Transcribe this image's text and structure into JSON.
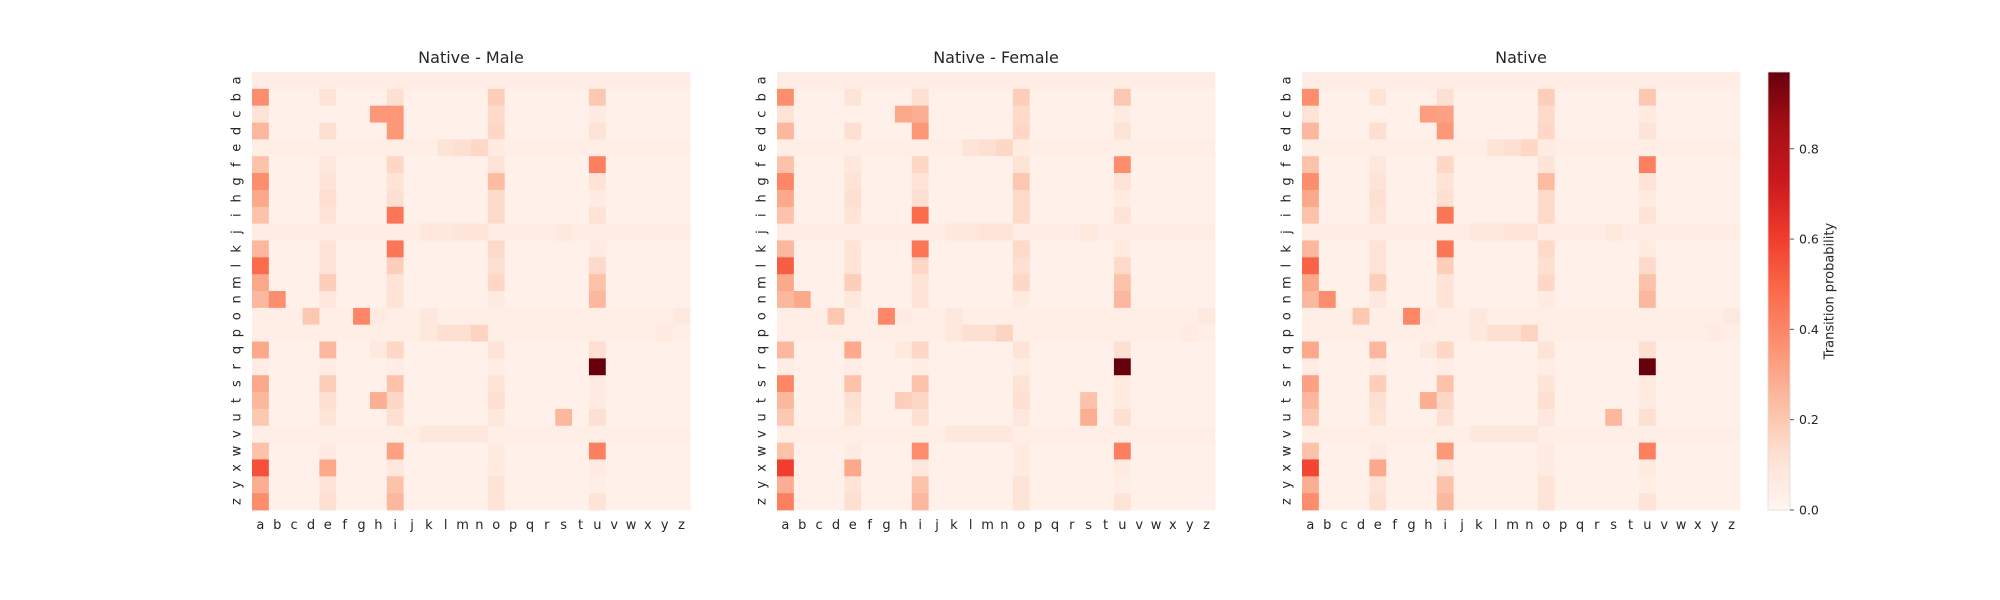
{
  "chart_data": [
    {
      "type": "heatmap",
      "title": "Native - Male",
      "x_categories": [
        "a",
        "b",
        "c",
        "d",
        "e",
        "f",
        "g",
        "h",
        "i",
        "j",
        "k",
        "l",
        "m",
        "n",
        "o",
        "p",
        "q",
        "r",
        "s",
        "t",
        "u",
        "v",
        "w",
        "x",
        "y",
        "z"
      ],
      "y_categories": [
        "a",
        "b",
        "c",
        "d",
        "e",
        "f",
        "g",
        "h",
        "i",
        "j",
        "k",
        "l",
        "m",
        "n",
        "o",
        "p",
        "q",
        "r",
        "s",
        "t",
        "u",
        "v",
        "w",
        "x",
        "y",
        "z"
      ],
      "xlabel": "",
      "ylabel": "",
      "profile": "male"
    },
    {
      "type": "heatmap",
      "title": "Native - Female",
      "x_categories": [
        "a",
        "b",
        "c",
        "d",
        "e",
        "f",
        "g",
        "h",
        "i",
        "j",
        "k",
        "l",
        "m",
        "n",
        "o",
        "p",
        "q",
        "r",
        "s",
        "t",
        "u",
        "v",
        "w",
        "x",
        "y",
        "z"
      ],
      "y_categories": [
        "a",
        "b",
        "c",
        "d",
        "e",
        "f",
        "g",
        "h",
        "i",
        "j",
        "k",
        "l",
        "m",
        "n",
        "o",
        "p",
        "q",
        "r",
        "s",
        "t",
        "u",
        "v",
        "w",
        "x",
        "y",
        "z"
      ],
      "xlabel": "",
      "ylabel": "",
      "profile": "female"
    },
    {
      "type": "heatmap",
      "title": "Native",
      "x_categories": [
        "a",
        "b",
        "c",
        "d",
        "e",
        "f",
        "g",
        "h",
        "i",
        "j",
        "k",
        "l",
        "m",
        "n",
        "o",
        "p",
        "q",
        "r",
        "s",
        "t",
        "u",
        "v",
        "w",
        "x",
        "y",
        "z"
      ],
      "y_categories": [
        "a",
        "b",
        "c",
        "d",
        "e",
        "f",
        "g",
        "h",
        "i",
        "j",
        "k",
        "l",
        "m",
        "n",
        "o",
        "p",
        "q",
        "r",
        "s",
        "t",
        "u",
        "v",
        "w",
        "x",
        "y",
        "z"
      ],
      "xlabel": "",
      "ylabel": "",
      "profile": "combined"
    }
  ],
  "colorbar": {
    "label": "Transition probability",
    "range": [
      0,
      0.97
    ],
    "ticks": [
      0.0,
      0.2,
      0.4,
      0.6,
      0.8
    ],
    "tick_labels": [
      "0.0",
      "0.2",
      "0.4",
      "0.6",
      "0.8"
    ],
    "colormap": "Reds",
    "color_stops": [
      "#fff5f0",
      "#fee0d2",
      "#fcbba1",
      "#fc9272",
      "#fb6a4a",
      "#ef3b2c",
      "#cb181d",
      "#a50f15",
      "#67000d"
    ]
  },
  "matrix_rules": {
    "baseline": 0.03,
    "default_vowel_columns": {
      "a": 0.12,
      "e": 0.06,
      "i": 0.07,
      "o": 0.08,
      "u": 0.05
    },
    "rows": {
      "a": {
        "fill": 0.05
      },
      "b": {
        "a": 0.38,
        "e": 0.1,
        "i": 0.12,
        "o": 0.18,
        "u": 0.2
      },
      "c": {
        "a": 0.1,
        "h": 0.35,
        "i": 0.35,
        "o": 0.14,
        "u": 0.06
      },
      "d": {
        "a": 0.25,
        "e": 0.12,
        "i": 0.35,
        "o": 0.15,
        "u": 0.1
      },
      "e": {
        "fill": 0.04,
        "m": 0.12,
        "n": 0.15,
        "l": 0.1,
        "o": 0.06
      },
      "f": {
        "a": 0.22,
        "e": 0.08,
        "i": 0.15,
        "o": 0.1,
        "u": 0.42
      },
      "g": {
        "a": 0.38,
        "e": 0.1,
        "i": 0.1,
        "o": 0.24,
        "u": 0.1
      },
      "h": {
        "a": 0.3,
        "e": 0.12,
        "i": 0.12,
        "o": 0.14,
        "u": 0.06
      },
      "i": {
        "a": 0.22,
        "e": 0.1,
        "i": 0.45,
        "o": 0.14,
        "u": 0.1
      },
      "j": {
        "fill": 0.05,
        "k": 0.08,
        "l": 0.08,
        "m": 0.09,
        "n": 0.09,
        "s": 0.07
      },
      "k": {
        "a": 0.25,
        "e": 0.1,
        "i": 0.45,
        "o": 0.14,
        "u": 0.06
      },
      "l": {
        "a": 0.48,
        "e": 0.1,
        "i": 0.18,
        "o": 0.12,
        "u": 0.14
      },
      "m": {
        "a": 0.3,
        "e": 0.18,
        "i": 0.1,
        "o": 0.15,
        "u": 0.22
      },
      "n": {
        "a": 0.25,
        "b": 0.38,
        "e": 0.08,
        "i": 0.1,
        "o": 0.06,
        "u": 0.25
      },
      "o": {
        "fill": 0.04,
        "d": 0.2,
        "g": 0.4,
        "h": 0.06,
        "k": 0.08,
        "z": 0.07
      },
      "p": {
        "fill": 0.04,
        "l": 0.12,
        "m": 0.12,
        "n": 0.16,
        "k": 0.08,
        "y": 0.06
      },
      "q": {
        "a": 0.3,
        "e": 0.25,
        "i": 0.15,
        "h": 0.07,
        "o": 0.1,
        "u": 0.12
      },
      "r": {
        "a": 0.05,
        "e": 0.05,
        "i": 0.05,
        "o": 0.05,
        "u": 0.97
      },
      "s": {
        "a": 0.3,
        "e": 0.18,
        "i": 0.22,
        "o": 0.1,
        "u": 0.06
      },
      "t": {
        "a": 0.25,
        "e": 0.12,
        "h": 0.28,
        "i": 0.15,
        "o": 0.12,
        "u": 0.06
      },
      "u": {
        "a": 0.2,
        "e": 0.1,
        "i": 0.12,
        "o": 0.08,
        "s": 0.25,
        "u": 0.12
      },
      "v": {
        "fill": 0.04,
        "k": 0.08,
        "l": 0.08,
        "m": 0.08,
        "n": 0.08
      },
      "w": {
        "a": 0.22,
        "e": 0.06,
        "i": 0.32,
        "o": 0.06,
        "u": 0.42
      },
      "x": {
        "a": 0.55,
        "e": 0.3,
        "i": 0.08,
        "o": 0.06,
        "u": 0.06
      },
      "y": {
        "a": 0.28,
        "e": 0.1,
        "i": 0.22,
        "o": 0.1,
        "u": 0.04
      },
      "z": {
        "a": 0.38,
        "e": 0.12,
        "i": 0.25,
        "o": 0.1,
        "u": 0.1
      }
    },
    "profile_overrides": {
      "male": {},
      "female": {
        "b": {
          "a": 0.38
        },
        "c": {
          "h": 0.3,
          "i": 0.28
        },
        "f": {
          "u": 0.38
        },
        "g": {
          "a": 0.4,
          "o": 0.2
        },
        "i": {
          "i": 0.48
        },
        "l": {
          "a": 0.52,
          "i": 0.15
        },
        "n": {
          "b": 0.3
        },
        "q": {
          "a": 0.25,
          "e": 0.3
        },
        "s": {
          "a": 0.4,
          "e": 0.22
        },
        "t": {
          "h": 0.18,
          "s": 0.22
        },
        "u": {
          "s": 0.28
        },
        "w": {
          "i": 0.38
        },
        "x": {
          "a": 0.6
        },
        "z": {
          "a": 0.42
        }
      },
      "combined": {
        "c": {
          "h": 0.33,
          "i": 0.32
        },
        "l": {
          "a": 0.5
        },
        "s": {
          "a": 0.32
        },
        "w": {
          "i": 0.35
        },
        "x": {
          "a": 0.58
        }
      }
    }
  }
}
